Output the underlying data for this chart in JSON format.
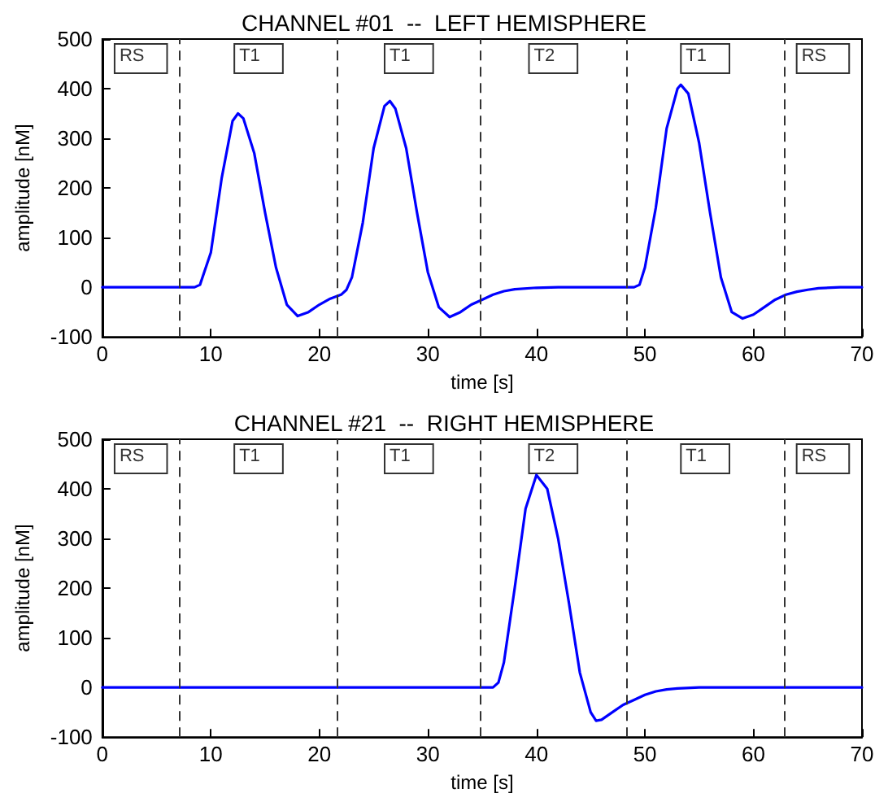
{
  "chart_data": [
    {
      "type": "line",
      "title": "CHANNEL #01  --  LEFT HEMISPHERE",
      "xlabel": "time [s]",
      "ylabel": "amplitude [nM]",
      "xlim": [
        0,
        70
      ],
      "xticks": [
        0,
        10,
        20,
        30,
        40,
        50,
        60,
        70
      ],
      "ylim": [
        -100,
        500
      ],
      "yticks": [
        -100,
        0,
        100,
        200,
        300,
        400,
        500
      ],
      "grid": false,
      "marker": "none",
      "line_style": "solid",
      "series": [
        {
          "color": "#0000ff",
          "x": [
            0,
            8.5,
            9,
            10,
            11,
            12,
            12.5,
            13,
            14,
            15,
            16,
            17,
            18,
            19,
            20,
            21,
            22,
            22.5,
            23,
            24,
            25,
            26,
            26.5,
            27,
            28,
            29,
            30,
            31,
            32,
            33,
            34,
            35,
            36,
            37,
            38,
            40,
            42,
            49,
            49.5,
            50,
            51,
            52,
            53,
            53.3,
            54,
            55,
            56,
            57,
            58,
            59,
            60,
            61,
            62,
            63,
            64,
            65,
            66,
            68,
            70
          ],
          "values": [
            0,
            0,
            5,
            70,
            220,
            335,
            350,
            340,
            270,
            150,
            40,
            -35,
            -58,
            -50,
            -35,
            -23,
            -15,
            -5,
            20,
            130,
            280,
            365,
            375,
            360,
            280,
            150,
            30,
            -40,
            -60,
            -50,
            -35,
            -25,
            -15,
            -8,
            -4,
            -1,
            0,
            0,
            5,
            40,
            160,
            320,
            400,
            408,
            390,
            290,
            150,
            20,
            -50,
            -63,
            -55,
            -40,
            -25,
            -15,
            -9,
            -5,
            -2,
            0,
            0
          ]
        }
      ],
      "ref_lines": [
        {
          "axis": "x",
          "value": 7.1,
          "line_style": "dashed",
          "color": "#333333"
        },
        {
          "axis": "x",
          "value": 21.7,
          "line_style": "dashed",
          "color": "#333333"
        },
        {
          "axis": "x",
          "value": 34.8,
          "line_style": "dashed",
          "color": "#333333"
        },
        {
          "axis": "x",
          "value": 48.3,
          "line_style": "dashed",
          "color": "#333333"
        },
        {
          "axis": "x",
          "value": 62.8,
          "line_style": "dashed",
          "color": "#333333"
        }
      ],
      "annotations": [
        "RS",
        "T1",
        "T1",
        "T2",
        "T1",
        "RS"
      ]
    },
    {
      "type": "line",
      "title": "CHANNEL #21  --  RIGHT HEMISPHERE",
      "xlabel": "time [s]",
      "ylabel": "amplitude [nM]",
      "xlim": [
        0,
        70
      ],
      "xticks": [
        0,
        10,
        20,
        30,
        40,
        50,
        60,
        70
      ],
      "ylim": [
        -100,
        500
      ],
      "yticks": [
        -100,
        0,
        100,
        200,
        300,
        400,
        500
      ],
      "grid": false,
      "marker": "none",
      "line_style": "solid",
      "series": [
        {
          "color": "#0000ff",
          "x": [
            0,
            36,
            36.5,
            37,
            38,
            39,
            40,
            41,
            42,
            43,
            44,
            45,
            45.5,
            46,
            47,
            48,
            49,
            50,
            51,
            52,
            53,
            55,
            70
          ],
          "values": [
            0,
            0,
            10,
            50,
            200,
            360,
            428,
            400,
            300,
            170,
            30,
            -50,
            -67,
            -65,
            -50,
            -35,
            -25,
            -15,
            -8,
            -4,
            -2,
            0,
            0
          ]
        }
      ],
      "ref_lines": [
        {
          "axis": "x",
          "value": 7.1,
          "line_style": "dashed",
          "color": "#333333"
        },
        {
          "axis": "x",
          "value": 21.7,
          "line_style": "dashed",
          "color": "#333333"
        },
        {
          "axis": "x",
          "value": 34.8,
          "line_style": "dashed",
          "color": "#333333"
        },
        {
          "axis": "x",
          "value": 48.3,
          "line_style": "dashed",
          "color": "#333333"
        },
        {
          "axis": "x",
          "value": 62.8,
          "line_style": "dashed",
          "color": "#333333"
        }
      ],
      "annotations": [
        "RS",
        "T1",
        "T1",
        "T2",
        "T1",
        "RS"
      ]
    }
  ]
}
